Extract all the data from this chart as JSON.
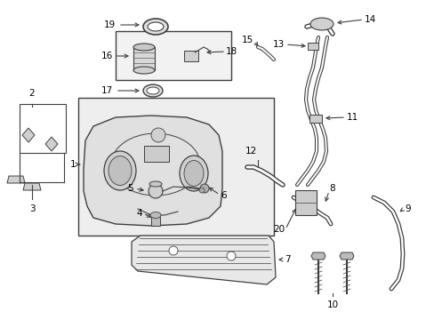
{
  "bg_color": "#ffffff",
  "line_color": "#404040",
  "fig_width": 4.89,
  "fig_height": 3.6,
  "dpi": 100,
  "label_fontsize": 7.5
}
